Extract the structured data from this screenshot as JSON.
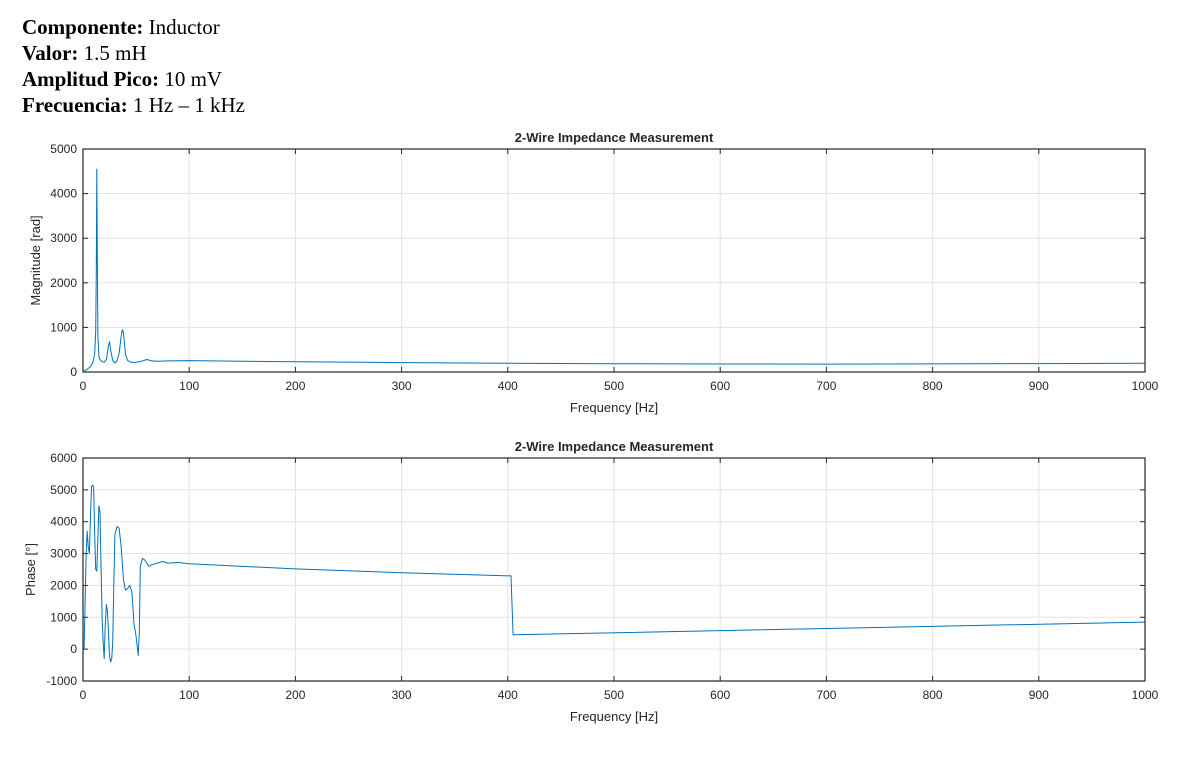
{
  "header": {
    "rows": [
      {
        "label": "Componente:",
        "value": " Inductor"
      },
      {
        "label": "Valor:",
        "value": " 1.5 mH"
      },
      {
        "label": "Amplitud Pico:",
        "value": " 10 mV"
      },
      {
        "label": "Frecuencia:",
        "value": " 1 Hz – 1 kHz"
      }
    ]
  },
  "chart_data": [
    {
      "type": "line",
      "title": "2-Wire Impedance Measurement",
      "xlabel": "Frequency [Hz]",
      "ylabel": "Magnitude [rad]",
      "xlim": [
        0,
        1000
      ],
      "ylim": [
        0,
        5000
      ],
      "xticks": [
        0,
        100,
        200,
        300,
        400,
        500,
        600,
        700,
        800,
        900,
        1000
      ],
      "yticks": [
        0,
        1000,
        2000,
        3000,
        4000,
        5000
      ],
      "grid": true,
      "line_color": "#0072BD",
      "series": [
        {
          "x": [
            1,
            4,
            7,
            9,
            10,
            11,
            12,
            12.5,
            13,
            13.5,
            14,
            15,
            16,
            18,
            20,
            22,
            24,
            25,
            26,
            28,
            30,
            32,
            34,
            36,
            37,
            38,
            39,
            40,
            42,
            44,
            46,
            48,
            50,
            55,
            60,
            65,
            70,
            80,
            100,
            150,
            200,
            300,
            400,
            500,
            600,
            700,
            800,
            900,
            1000
          ],
          "y": [
            20,
            60,
            120,
            200,
            280,
            420,
            900,
            2300,
            4550,
            2600,
            800,
            350,
            280,
            230,
            220,
            280,
            600,
            680,
            500,
            260,
            200,
            250,
            420,
            800,
            950,
            900,
            650,
            400,
            260,
            230,
            220,
            210,
            220,
            240,
            280,
            250,
            240,
            250,
            255,
            240,
            230,
            210,
            195,
            185,
            180,
            178,
            182,
            188,
            195
          ]
        }
      ]
    },
    {
      "type": "line",
      "title": "2-Wire Impedance Measurement",
      "xlabel": "Frequency [Hz]",
      "ylabel": "Phase [°]",
      "xlim": [
        0,
        1000
      ],
      "ylim": [
        -1000,
        6000
      ],
      "xticks": [
        0,
        100,
        200,
        300,
        400,
        500,
        600,
        700,
        800,
        900,
        1000
      ],
      "yticks": [
        -1000,
        0,
        1000,
        2000,
        3000,
        4000,
        5000,
        6000
      ],
      "grid": true,
      "line_color": "#0072BD",
      "series": [
        {
          "x": [
            1,
            2,
            3,
            4,
            5,
            6,
            7,
            8,
            9,
            10,
            11,
            12,
            13,
            14,
            15,
            16,
            17,
            18,
            19,
            20,
            21,
            22,
            23,
            24,
            25,
            26,
            27,
            28,
            29,
            30,
            32,
            34,
            36,
            38,
            40,
            42,
            44,
            46,
            48,
            50,
            52,
            53,
            54,
            56,
            58,
            60,
            62,
            65,
            70,
            75,
            80,
            90,
            100,
            200,
            300,
            403,
            405,
            1000
          ],
          "y": [
            0,
            1500,
            3000,
            3700,
            3200,
            3000,
            4100,
            5100,
            5150,
            5100,
            3600,
            2500,
            2450,
            3500,
            4500,
            4300,
            2500,
            1000,
            200,
            -300,
            800,
            1400,
            1200,
            500,
            -200,
            -400,
            -300,
            200,
            2000,
            3600,
            3850,
            3800,
            3200,
            2200,
            1850,
            1900,
            2000,
            1800,
            800,
            400,
            -200,
            500,
            2600,
            2850,
            2800,
            2700,
            2600,
            2650,
            2700,
            2750,
            2700,
            2720,
            2680,
            2520,
            2400,
            2300,
            450,
            850
          ]
        }
      ]
    }
  ]
}
